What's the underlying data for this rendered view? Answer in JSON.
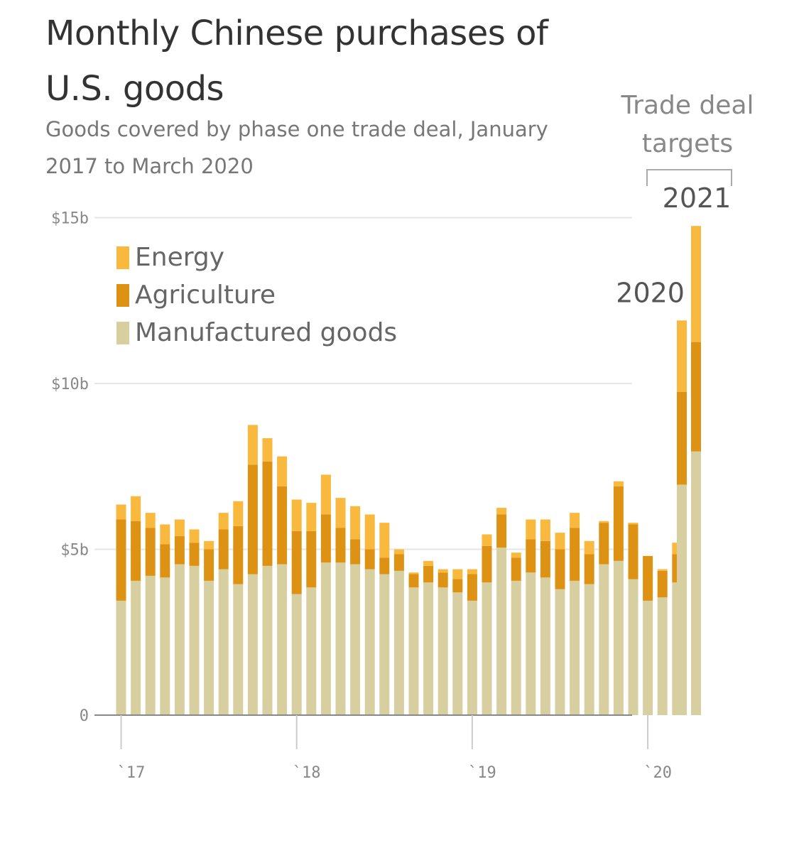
{
  "title": "Monthly Chinese purchases of U.S. goods",
  "subtitle": "Goods covered by phase one trade deal, January 2017 to March 2020",
  "targets_label": "Trade deal targets",
  "colors": {
    "energy": "#f9b83e",
    "agriculture": "#de9213",
    "manufactured": "#d8cfa1",
    "grid": "#e6e6e6",
    "axis": "#888888"
  },
  "legend": [
    {
      "label": "Energy",
      "color_key": "energy"
    },
    {
      "label": "Agriculture",
      "color_key": "agriculture"
    },
    {
      "label": "Manufactured goods",
      "color_key": "manufactured"
    }
  ],
  "chart_data": {
    "type": "bar",
    "stacked": true,
    "y_ticks": [
      {
        "value": 0,
        "label": "0"
      },
      {
        "value": 5,
        "label": "$5b"
      },
      {
        "value": 10,
        "label": "$10b"
      },
      {
        "value": 15,
        "label": "$15b"
      }
    ],
    "ylim": [
      0,
      15
    ],
    "x_ticks": [
      {
        "index": 0,
        "label": "`17"
      },
      {
        "index": 12,
        "label": "`18"
      },
      {
        "index": 24,
        "label": "`19"
      },
      {
        "index": 36,
        "label": "`20"
      }
    ],
    "series": [
      {
        "name": "Manufactured goods",
        "color_key": "manufactured",
        "values": [
          3.45,
          4.05,
          4.2,
          4.15,
          4.55,
          4.5,
          4.05,
          4.4,
          3.95,
          4.25,
          4.5,
          4.55,
          3.65,
          3.85,
          4.6,
          4.6,
          4.55,
          4.4,
          4.25,
          4.35,
          3.85,
          4.0,
          3.85,
          3.7,
          3.45,
          4.0,
          5.05,
          4.05,
          4.3,
          4.15,
          3.8,
          4.05,
          3.95,
          4.55,
          4.65,
          4.1,
          3.45,
          3.55,
          4.0
        ]
      },
      {
        "name": "Agriculture",
        "color_key": "agriculture",
        "values": [
          2.45,
          1.8,
          1.45,
          1.0,
          0.85,
          0.7,
          0.95,
          1.2,
          1.75,
          3.3,
          3.15,
          2.35,
          1.9,
          1.7,
          1.45,
          1.05,
          0.75,
          0.6,
          0.5,
          0.5,
          0.4,
          0.5,
          0.45,
          0.4,
          0.8,
          1.1,
          1.0,
          0.7,
          1.0,
          1.1,
          1.2,
          1.6,
          0.9,
          1.25,
          2.25,
          1.65,
          1.35,
          0.8,
          0.85
        ]
      },
      {
        "name": "Energy",
        "color_key": "energy",
        "values": [
          0.45,
          0.75,
          0.45,
          0.6,
          0.5,
          0.4,
          0.25,
          0.5,
          0.75,
          1.2,
          0.7,
          0.9,
          0.95,
          0.85,
          1.2,
          0.9,
          1.0,
          1.05,
          1.05,
          0.15,
          0.05,
          0.15,
          0.1,
          0.3,
          0.15,
          0.35,
          0.2,
          0.15,
          0.6,
          0.65,
          0.5,
          0.45,
          0.4,
          0.05,
          0.15,
          0.05,
          0.0,
          0.05,
          0.35
        ]
      }
    ],
    "targets": [
      {
        "label": "2020",
        "manufactured": 6.95,
        "agriculture": 2.8,
        "energy": 2.15
      },
      {
        "label": "2021",
        "manufactured": 7.95,
        "agriculture": 3.3,
        "energy": 3.5
      }
    ]
  }
}
